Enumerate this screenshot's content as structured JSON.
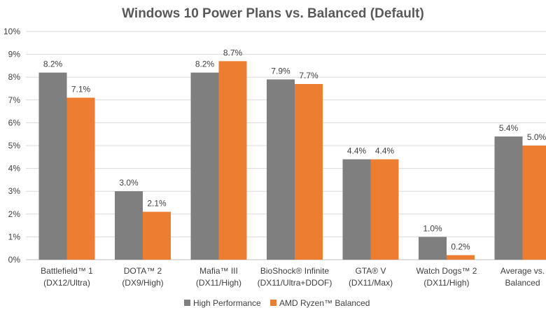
{
  "chart_data": {
    "type": "bar",
    "title": "Windows 10 Power Plans vs. Balanced (Default)",
    "xlabel": "",
    "ylabel": "",
    "ylim": [
      0,
      10
    ],
    "y_ticks": [
      "0%",
      "1%",
      "2%",
      "3%",
      "4%",
      "5%",
      "6%",
      "7%",
      "8%",
      "9%",
      "10%"
    ],
    "categories": [
      [
        "Battlefield™ 1",
        "(DX12/Ultra)"
      ],
      [
        "DOTA™ 2",
        "(DX9/High)"
      ],
      [
        "Mafia™ III",
        "(DX11/High)"
      ],
      [
        "BioShock® Infinite",
        "(DX11/Ultra+DDOF)"
      ],
      [
        "GTA® V",
        "(DX11/Max)"
      ],
      [
        "Watch Dogs™ 2",
        "(DX11/High)"
      ],
      [
        "Average vs.",
        "Balanced"
      ]
    ],
    "series": [
      {
        "name": "High Performance",
        "color": "#7f7f7f",
        "values": [
          8.2,
          3.0,
          8.2,
          7.9,
          4.4,
          1.0,
          5.4
        ],
        "labels": [
          "8.2%",
          "3.0%",
          "8.2%",
          "7.9%",
          "4.4%",
          "1.0%",
          "5.4%"
        ]
      },
      {
        "name": "AMD Ryzen™ Balanced",
        "color": "#ed7d31",
        "values": [
          7.1,
          2.1,
          8.7,
          7.7,
          4.4,
          0.2,
          5.0
        ],
        "labels": [
          "7.1%",
          "2.1%",
          "8.7%",
          "7.7%",
          "4.4%",
          "0.2%",
          "5.0%"
        ]
      }
    ],
    "grid": true,
    "legend_position": "bottom"
  }
}
